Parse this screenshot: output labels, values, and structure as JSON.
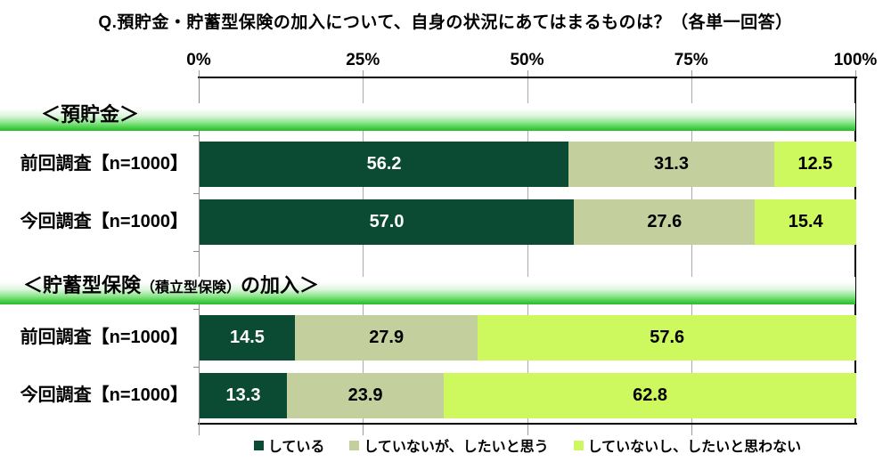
{
  "chart_data": {
    "type": "bar",
    "orientation": "horizontal",
    "stacked": true,
    "title": "Q.預貯金・貯蓄型保険の加入について、自身の状況にあてはまるものは？（各単一回答）",
    "x_axis": {
      "ticks": [
        "0%",
        "25%",
        "50%",
        "75%",
        "100%"
      ],
      "range": [
        0,
        100
      ],
      "grid": true
    },
    "series": [
      {
        "name": "している",
        "color": "#0B4A33",
        "text_color": "#ffffff"
      },
      {
        "name": "していないが、したいと思う",
        "color": "#C3CF9D",
        "text_color": "#000000"
      },
      {
        "name": "していないし、したいと思わない",
        "color": "#CEF95E",
        "text_color": "#000000"
      }
    ],
    "groups": [
      {
        "header": "＜預貯金＞",
        "header_parts": [
          {
            "text": "＜預貯金＞",
            "small": false
          }
        ],
        "rows": [
          {
            "label": "前回調査【n=1000】",
            "values": [
              56.2,
              31.3,
              12.5
            ]
          },
          {
            "label": "今回調査【n=1000】",
            "values": [
              57.0,
              27.6,
              15.4
            ]
          }
        ]
      },
      {
        "header": "＜貯蓄型保険（積立型保険）の加入＞",
        "header_parts": [
          {
            "text": "＜貯蓄型保険",
            "small": false
          },
          {
            "text": "（積立型保険）",
            "small": true
          },
          {
            "text": "の加入＞",
            "small": false
          }
        ],
        "rows": [
          {
            "label": "前回調査【n=1000】",
            "values": [
              14.5,
              27.9,
              57.6
            ]
          },
          {
            "label": "今回調査【n=1000】",
            "values": [
              13.3,
              23.9,
              62.8
            ]
          }
        ]
      }
    ],
    "legend_position": "bottom",
    "band_gradient_top": "#ffffff",
    "band_gradient_bottom": "#2db92d"
  }
}
